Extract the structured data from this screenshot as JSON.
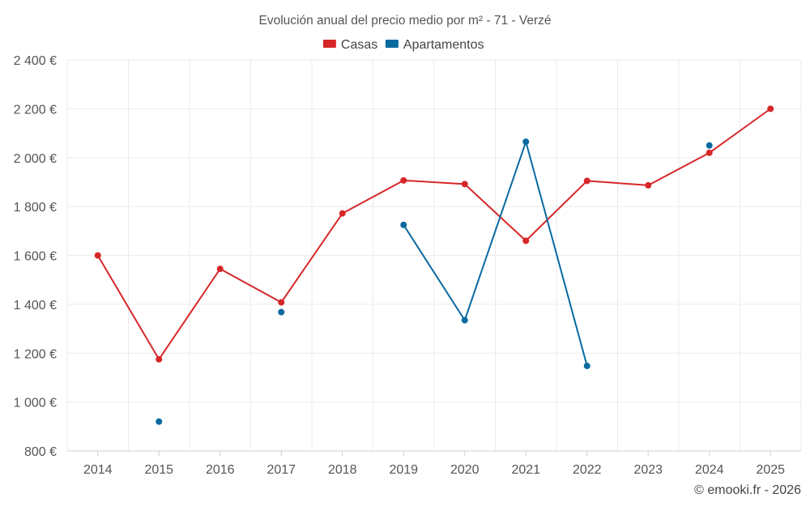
{
  "chart_data": {
    "type": "line",
    "title": "Evolución anual del precio medio por m² - 71 - Verzé",
    "xlabel": "",
    "ylabel": "",
    "categories": [
      "2014",
      "2015",
      "2016",
      "2017",
      "2018",
      "2019",
      "2020",
      "2021",
      "2022",
      "2023",
      "2024",
      "2025"
    ],
    "ylim": [
      800,
      2400
    ],
    "yticks": [
      800,
      1000,
      1200,
      1400,
      1600,
      1800,
      2000,
      2200,
      2400
    ],
    "ytick_labels": [
      "800 €",
      "1 000 €",
      "1 200 €",
      "1 400 €",
      "1 600 €",
      "1 800 €",
      "2 000 €",
      "2 200 €",
      "2 400 €"
    ],
    "grid": true,
    "legend_position": "top-center",
    "series": [
      {
        "name": "Casas",
        "color": "#d62728",
        "values": [
          1600,
          1175,
          1545,
          1408,
          1772,
          1907,
          1892,
          1660,
          1905,
          1887,
          2020,
          2200
        ]
      },
      {
        "name": "Apartamentos",
        "color": "#0a69a0",
        "values": [
          null,
          920,
          null,
          1368,
          null,
          1725,
          1335,
          2065,
          1148,
          null,
          2050,
          null
        ]
      }
    ]
  },
  "credit": "© emooki.fr - 2026"
}
